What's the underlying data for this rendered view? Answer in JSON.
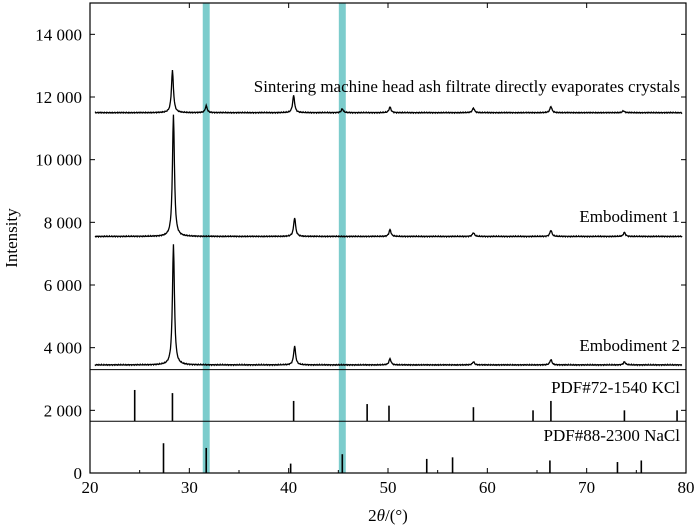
{
  "chart_data": {
    "type": "line",
    "title": "",
    "xlabel": "2θ/(°)",
    "ylabel": "Intensity",
    "xlim": [
      20,
      80
    ],
    "ylim": [
      0,
      15000
    ],
    "x_ticks": [
      20,
      30,
      40,
      50,
      60,
      70,
      80
    ],
    "x_tick_labels": [
      "20",
      "30",
      "40",
      "50",
      "60",
      "70",
      "80"
    ],
    "y_ticks": [
      0,
      2000,
      4000,
      6000,
      8000,
      10000,
      12000,
      14000
    ],
    "y_tick_labels": [
      "0",
      "2 000",
      "4 000",
      "6 000",
      "8 000",
      "10 000",
      "12 000",
      "14 000"
    ],
    "grid": false,
    "highlight_bands": [
      {
        "x": 31.7,
        "width": 0.7,
        "color": "#7ccccc"
      },
      {
        "x": 45.4,
        "width": 0.7,
        "color": "#7ccccc"
      }
    ],
    "separator_lines_y": [
      3300,
      1650
    ],
    "series": [
      {
        "name": "Sintering machine head ash filtrate directly evaporates crystals",
        "baseline": 11500,
        "peaks": [
          {
            "x": 28.3,
            "height": 1350
          },
          {
            "x": 31.7,
            "height": 220
          },
          {
            "x": 40.5,
            "height": 550
          },
          {
            "x": 45.4,
            "height": 120
          },
          {
            "x": 50.2,
            "height": 180
          },
          {
            "x": 58.6,
            "height": 150
          },
          {
            "x": 66.4,
            "height": 200
          },
          {
            "x": 73.7,
            "height": 60
          }
        ]
      },
      {
        "name": "Embodiment 1",
        "baseline": 7550,
        "peaks": [
          {
            "x": 28.4,
            "height": 3900
          },
          {
            "x": 40.6,
            "height": 600
          },
          {
            "x": 50.2,
            "height": 220
          },
          {
            "x": 58.6,
            "height": 120
          },
          {
            "x": 66.4,
            "height": 200
          },
          {
            "x": 73.8,
            "height": 130
          }
        ]
      },
      {
        "name": "Embodiment 2",
        "baseline": 3450,
        "peaks": [
          {
            "x": 28.4,
            "height": 3850
          },
          {
            "x": 40.6,
            "height": 600
          },
          {
            "x": 50.2,
            "height": 200
          },
          {
            "x": 58.6,
            "height": 100
          },
          {
            "x": 66.4,
            "height": 170
          },
          {
            "x": 73.8,
            "height": 100
          }
        ]
      }
    ],
    "references": [
      {
        "name": "PDF#72-1540 KCl",
        "baseline": 1650,
        "lines": [
          {
            "x": 24.5,
            "height": 1000
          },
          {
            "x": 28.3,
            "height": 900
          },
          {
            "x": 40.5,
            "height": 650
          },
          {
            "x": 47.9,
            "height": 550
          },
          {
            "x": 50.1,
            "height": 500
          },
          {
            "x": 58.6,
            "height": 450
          },
          {
            "x": 64.6,
            "height": 350
          },
          {
            "x": 66.4,
            "height": 650
          },
          {
            "x": 73.8,
            "height": 350
          },
          {
            "x": 79.1,
            "height": 350
          }
        ]
      },
      {
        "name": "PDF#88-2300 NaCl",
        "baseline": 0,
        "lines": [
          {
            "x": 27.4,
            "height": 950
          },
          {
            "x": 31.7,
            "height": 800
          },
          {
            "x": 40.2,
            "height": 300
          },
          {
            "x": 45.4,
            "height": 600
          },
          {
            "x": 53.9,
            "height": 450
          },
          {
            "x": 56.5,
            "height": 500
          },
          {
            "x": 66.3,
            "height": 400
          },
          {
            "x": 73.1,
            "height": 350
          },
          {
            "x": 75.5,
            "height": 400
          }
        ]
      }
    ]
  }
}
